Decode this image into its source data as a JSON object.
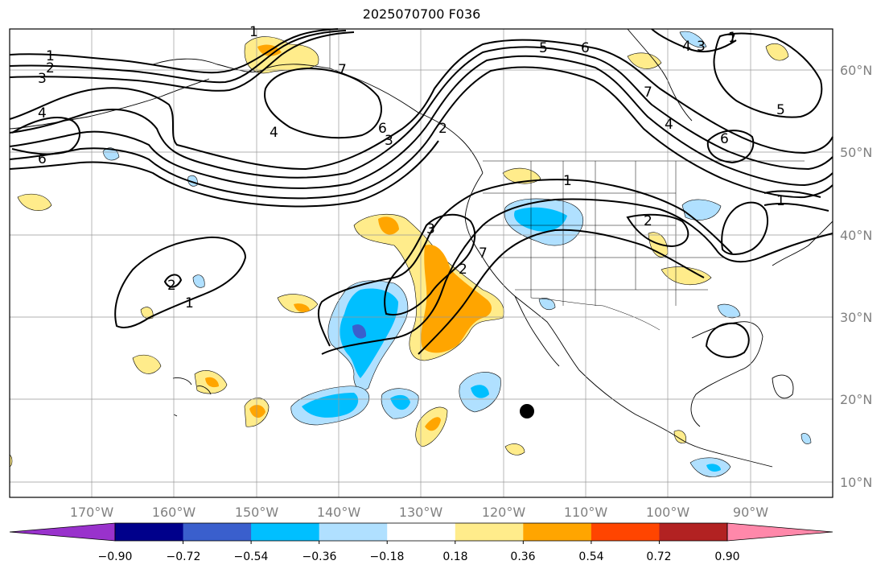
{
  "title": "2025070700 F036",
  "map": {
    "projection": "plate-carree",
    "lon_range": [
      -180,
      -80
    ],
    "lat_range": [
      8,
      65
    ],
    "gridlines": true,
    "lon_ticks": [
      "170°W",
      "160°W",
      "150°W",
      "140°W",
      "130°W",
      "120°W",
      "110°W",
      "100°W",
      "90°W"
    ],
    "lat_ticks": [
      "60°N",
      "50°N",
      "40°N",
      "30°N",
      "20°N",
      "10°N"
    ],
    "contour_labels": [
      "1",
      "2",
      "3",
      "4",
      "6",
      "1",
      "2",
      "3",
      "4",
      "6",
      "7",
      "5",
      "6",
      "7",
      "5",
      "4",
      "3",
      "7",
      "1",
      "6",
      "1",
      "2",
      "3",
      "2",
      "2",
      "1",
      "4",
      "1",
      "7"
    ],
    "marker": {
      "name": "black-dot",
      "lon": -117,
      "lat": 18.5
    }
  },
  "colorbar": {
    "colors": [
      "#9932cc",
      "#00008b",
      "#3a5fcd",
      "#00bfff",
      "#b0e0ff",
      "#ffffff",
      "#ffec8b",
      "#ffa500",
      "#ff4500",
      "#b22222",
      "#ff88aa"
    ],
    "ticks": [
      "−0.90",
      "−0.72",
      "−0.54",
      "−0.36",
      "−0.18",
      "0.18",
      "0.36",
      "0.54",
      "0.72",
      "0.90"
    ]
  }
}
